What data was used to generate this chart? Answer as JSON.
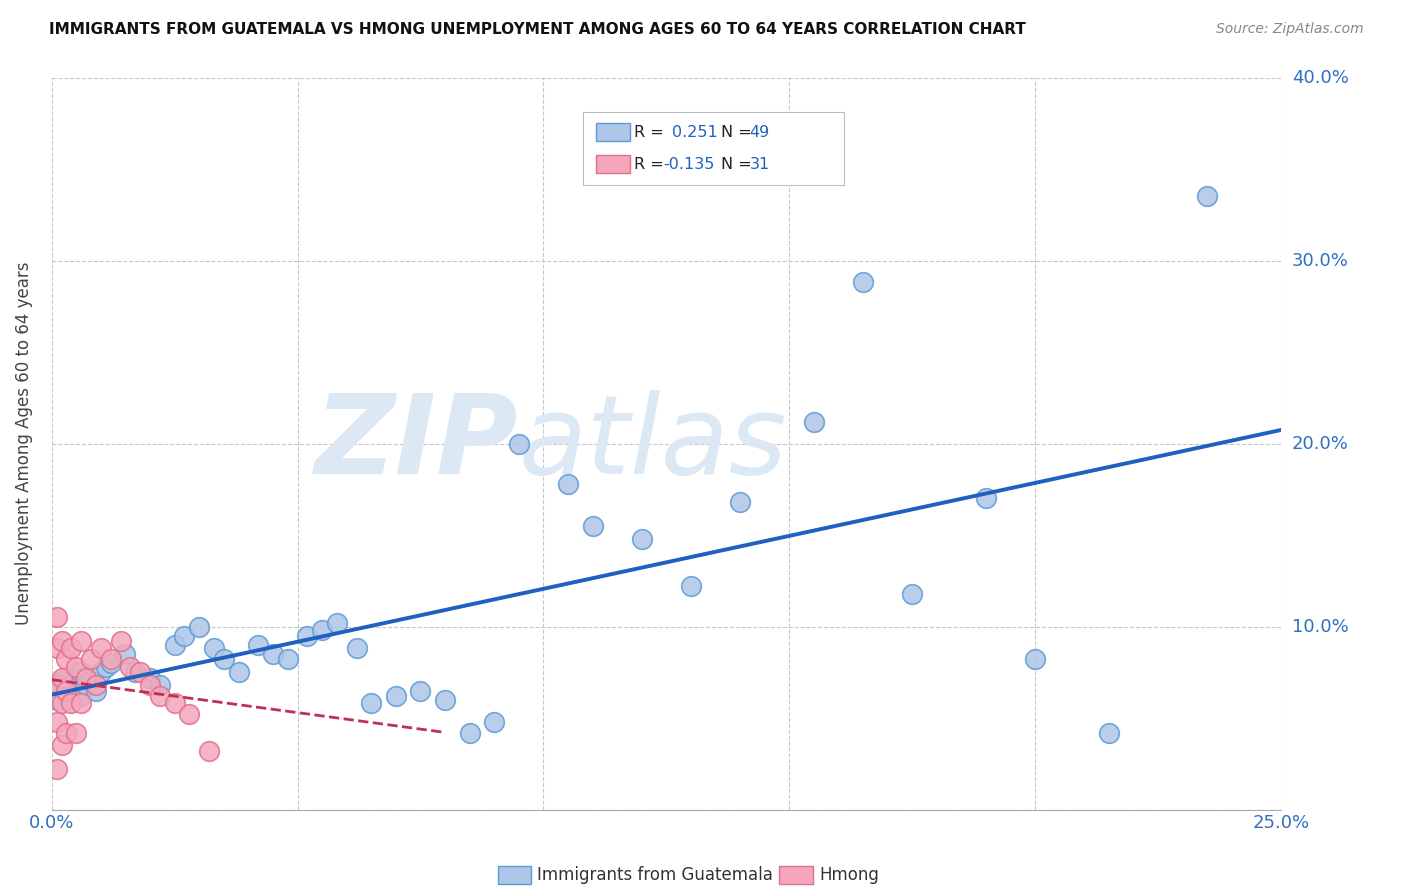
{
  "title": "IMMIGRANTS FROM GUATEMALA VS HMONG UNEMPLOYMENT AMONG AGES 60 TO 64 YEARS CORRELATION CHART",
  "source": "Source: ZipAtlas.com",
  "ylabel": "Unemployment Among Ages 60 to 64 years",
  "xlim": [
    0.0,
    0.25
  ],
  "ylim": [
    0.0,
    0.4
  ],
  "xticks": [
    0.0,
    0.05,
    0.1,
    0.15,
    0.2,
    0.25
  ],
  "xticklabels": [
    "0.0%",
    "",
    "",
    "",
    "",
    "25.0%"
  ],
  "yticks": [
    0.0,
    0.1,
    0.2,
    0.3,
    0.4
  ],
  "yticklabels": [
    "",
    "10.0%",
    "20.0%",
    "30.0%",
    "40.0%"
  ],
  "guatemala_color": "#aec6e8",
  "hmong_color": "#f4a7b9",
  "guatemala_edge_color": "#5b9bd5",
  "hmong_edge_color": "#e07090",
  "trend_guatemala_color": "#2060c0",
  "trend_hmong_color": "#c03050",
  "R_guatemala": 0.251,
  "N_guatemala": 49,
  "R_hmong": -0.135,
  "N_hmong": 31,
  "background_color": "#ffffff",
  "grid_color": "#c8c8c8",
  "watermark_color": "#dce9f5",
  "guatemala_x": [
    0.001,
    0.002,
    0.003,
    0.004,
    0.005,
    0.006,
    0.006,
    0.007,
    0.008,
    0.009,
    0.01,
    0.011,
    0.012,
    0.015,
    0.017,
    0.02,
    0.022,
    0.025,
    0.027,
    0.03,
    0.033,
    0.035,
    0.038,
    0.042,
    0.045,
    0.048,
    0.052,
    0.055,
    0.058,
    0.062,
    0.065,
    0.07,
    0.075,
    0.08,
    0.085,
    0.09,
    0.095,
    0.105,
    0.11,
    0.12,
    0.13,
    0.14,
    0.155,
    0.165,
    0.175,
    0.19,
    0.2,
    0.215,
    0.235
  ],
  "guatemala_y": [
    0.06,
    0.07,
    0.065,
    0.068,
    0.072,
    0.075,
    0.062,
    0.068,
    0.07,
    0.065,
    0.075,
    0.078,
    0.08,
    0.085,
    0.075,
    0.072,
    0.068,
    0.09,
    0.095,
    0.1,
    0.088,
    0.082,
    0.075,
    0.09,
    0.085,
    0.082,
    0.095,
    0.098,
    0.102,
    0.088,
    0.058,
    0.062,
    0.065,
    0.06,
    0.042,
    0.048,
    0.2,
    0.178,
    0.155,
    0.148,
    0.122,
    0.168,
    0.212,
    0.288,
    0.118,
    0.17,
    0.082,
    0.042,
    0.335
  ],
  "hmong_x": [
    0.001,
    0.001,
    0.001,
    0.001,
    0.001,
    0.002,
    0.002,
    0.002,
    0.002,
    0.003,
    0.003,
    0.003,
    0.004,
    0.004,
    0.005,
    0.005,
    0.006,
    0.006,
    0.007,
    0.008,
    0.009,
    0.01,
    0.012,
    0.014,
    0.016,
    0.018,
    0.02,
    0.022,
    0.025,
    0.028,
    0.032
  ],
  "hmong_y": [
    0.105,
    0.088,
    0.068,
    0.048,
    0.022,
    0.092,
    0.072,
    0.058,
    0.035,
    0.082,
    0.065,
    0.042,
    0.088,
    0.058,
    0.078,
    0.042,
    0.092,
    0.058,
    0.072,
    0.082,
    0.068,
    0.088,
    0.082,
    0.092,
    0.078,
    0.075,
    0.068,
    0.062,
    0.058,
    0.052,
    0.032
  ]
}
